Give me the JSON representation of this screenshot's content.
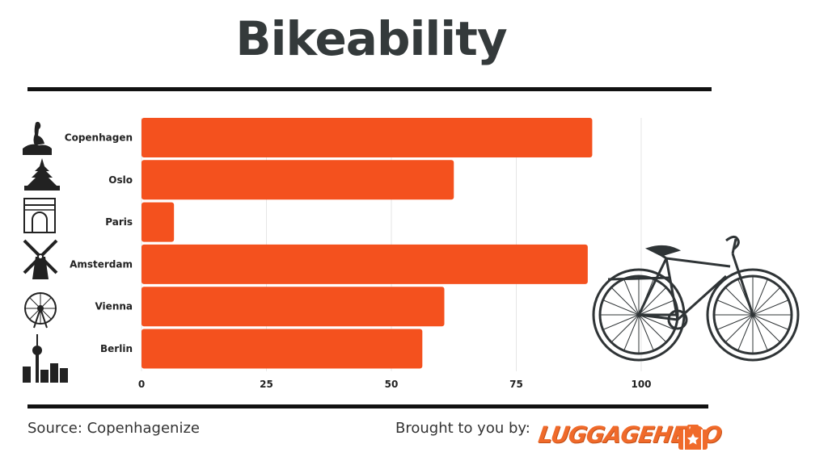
{
  "header": {
    "title": "Bikeability"
  },
  "footer": {
    "source": "Source: Copenhagenize",
    "brought_by": "Brought to you by:",
    "logo_text": "LUGGAGEHERO"
  },
  "icons": [
    "little-mermaid-icon",
    "stave-church-icon",
    "arc-de-triomphe-icon",
    "windmill-icon",
    "ferris-wheel-icon",
    "tv-tower-skyline-icon",
    "bicycle-icon",
    "suitcase-star-icon"
  ],
  "colors": {
    "bar": "#f4511e",
    "text": "#343a3b",
    "rule": "#111111",
    "grid": "#e6e6e6"
  },
  "chart_data": {
    "type": "bar",
    "orientation": "horizontal",
    "categories": [
      "Copenhagen",
      "Oslo",
      "Paris",
      "Amsterdam",
      "Vienna",
      "Berlin"
    ],
    "values": [
      90.2,
      62.5,
      6.5,
      89.3,
      60.6,
      56.2
    ],
    "xlim": [
      0,
      100
    ],
    "xticks": [
      "0",
      "25",
      "50",
      "75",
      "100"
    ],
    "title": "Bikeability",
    "xlabel": "",
    "ylabel": "",
    "grid": true
  }
}
